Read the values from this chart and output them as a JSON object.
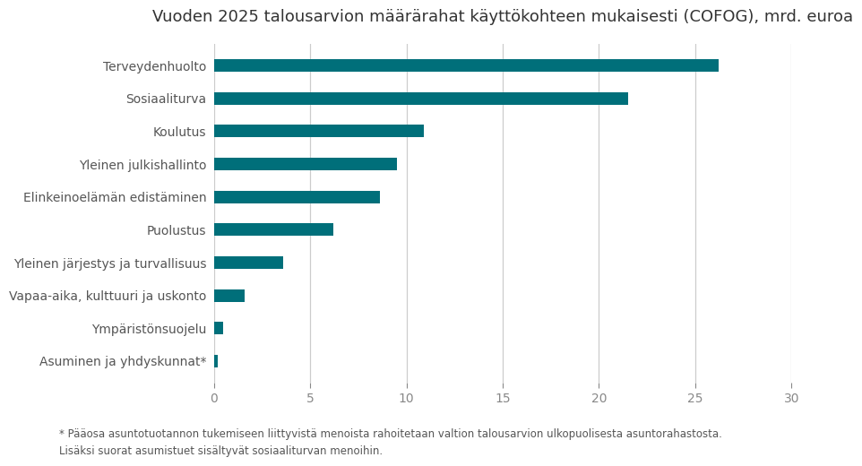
{
  "title": "Vuoden 2025 talousarvion määrärahat käyttökohteen mukaisesti (COFOG), mrd. euroa",
  "categories": [
    "Asuminen ja yhdyskunnat*",
    "Ympäristönsuojelu",
    "Vapaa-aika, kulttuuri ja uskonto",
    "Yleinen järjestys ja turvallisuus",
    "Puolustus",
    "Elinkeinoelämän edistäminen",
    "Yleinen julkishallinto",
    "Koulutus",
    "Sosiaaliturva",
    "Terveydenhuolto"
  ],
  "values": [
    0.18,
    0.5,
    1.6,
    3.6,
    6.2,
    8.6,
    9.5,
    10.9,
    21.5,
    26.2
  ],
  "bar_color": "#006f7a",
  "xlim": [
    0,
    30
  ],
  "xticks": [
    0,
    5,
    10,
    15,
    20,
    25,
    30
  ],
  "footnote": "* Pääosa asuntotuotannon tukemiseen liittyvistä menoista rahoitetaan valtion talousarvion ulkopuolisesta asuntorahastosta.\nLisäksi suorat asumistuet sisältyvät sosiaaliturvan menoihin.",
  "background_color": "#ffffff",
  "title_fontsize": 13,
  "label_fontsize": 10,
  "tick_fontsize": 10,
  "footnote_fontsize": 8.5,
  "title_color": "#333333",
  "label_color": "#555555",
  "tick_color": "#888888",
  "grid_color": "#cccccc",
  "bar_height": 0.38
}
